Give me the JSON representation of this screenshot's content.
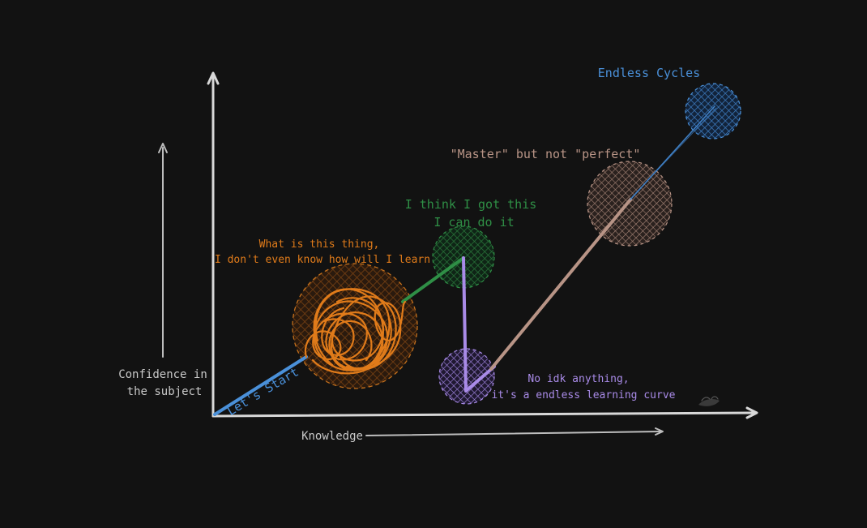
{
  "colors": {
    "background": "#121212",
    "axis": "#d8d8d8",
    "blue": "#4a90d9",
    "orange": "#e07b1a",
    "green": "#2f8f46",
    "purple": "#a98be8",
    "tan": "#b89486",
    "muted_text": "#c8c8c8"
  },
  "axes": {
    "x_label": "Knowledge",
    "y_label_line1": "Confidence in",
    "y_label_line2": "the subject"
  },
  "stages": {
    "start": {
      "label": "Let's Start"
    },
    "confused": {
      "line1": "What is this thing,",
      "line2": "I don't even know how will I learn"
    },
    "confident": {
      "line1": "I think I got this",
      "line2": "I can do it"
    },
    "humbled": {
      "line1": "No idk anything,",
      "line2": "it's a endless learning curve"
    },
    "master": {
      "label": "\"Master\" but not \"perfect\""
    },
    "endless": {
      "label": "Endless Cycles"
    }
  },
  "signature": "Kira"
}
